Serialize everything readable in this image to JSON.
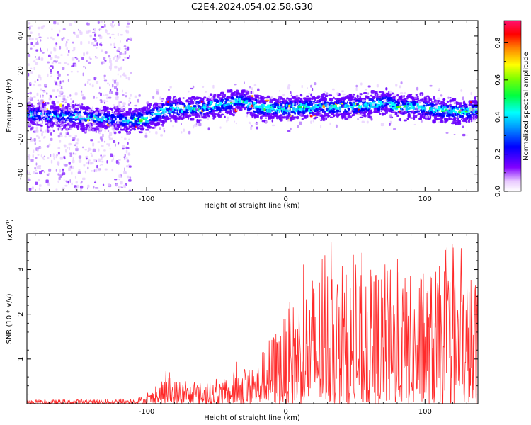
{
  "figure": {
    "title": "C2E4.2024.054.02.58.G30"
  },
  "chart_data": [
    {
      "type": "heatmap",
      "title": "",
      "xlabel": "Height of straight line (km)",
      "ylabel": "Frequency (Hz)",
      "xlim": [
        -186,
        138
      ],
      "ylim": [
        -50,
        49
      ],
      "x_ticks": [
        -100,
        0,
        100
      ],
      "y_ticks": [
        -40,
        -20,
        0,
        20,
        40
      ],
      "colorbar": {
        "label": "Normalized spectral amplitude",
        "range": [
          0,
          0.92
        ],
        "ticks": [
          0.0,
          0.2,
          0.4,
          0.6,
          0.8
        ]
      },
      "ridge": {
        "description_points_x": [
          -186,
          -170,
          -150,
          -130,
          -115,
          -100,
          -90,
          -80,
          -70,
          -60,
          -50,
          -40,
          -32,
          -25,
          -15,
          -5,
          5,
          15,
          30,
          45,
          60,
          72,
          80,
          95,
          110,
          125,
          138
        ],
        "description_points_freq": [
          -5,
          -6,
          -7,
          -8,
          -9,
          -8,
          -4,
          -2,
          -2,
          -2,
          0,
          1,
          3,
          0,
          -2,
          -2,
          -2,
          -1,
          -1,
          -1,
          0,
          2,
          -1,
          -1,
          -3,
          -4,
          -3
        ]
      },
      "colors": {
        "colormap": [
          "#ff00ff",
          "#6a00ff",
          "#0000ff",
          "#00c0ff",
          "#00ffff",
          "#00ff40",
          "#40ff00",
          "#ffff00",
          "#ff9000",
          "#ff0000",
          "#ff1060"
        ]
      }
    },
    {
      "type": "line",
      "title": "",
      "xlabel": "Height of straight line (km)",
      "ylabel": "SNR (10 * v/v)",
      "y_scale_label": "(x10",
      "y_scale_exp": "4",
      "xlim": [
        -186,
        138
      ],
      "ylim": [
        0,
        3.8
      ],
      "x_ticks": [
        -100,
        0,
        100
      ],
      "y_ticks": [
        1,
        2,
        3
      ],
      "series": [
        {
          "color": "#ff2a2a",
          "envelope_x": [
            -186,
            -110,
            -100,
            -90,
            -85,
            -80,
            -70,
            -60,
            -50,
            -40,
            -35,
            -25,
            -20,
            -10,
            0,
            10,
            20,
            30,
            40,
            50,
            60,
            70,
            80,
            90,
            100,
            110,
            120,
            130,
            138
          ],
          "envelope_hi": [
            0.08,
            0.12,
            0.2,
            0.45,
            0.7,
            0.55,
            0.45,
            0.5,
            0.5,
            0.6,
            0.9,
            0.8,
            1.0,
            1.6,
            2.0,
            2.6,
            3.0,
            3.2,
            3.0,
            2.9,
            3.0,
            3.2,
            3.0,
            2.9,
            3.0,
            3.1,
            3.2,
            3.0,
            2.8
          ]
        }
      ]
    }
  ]
}
